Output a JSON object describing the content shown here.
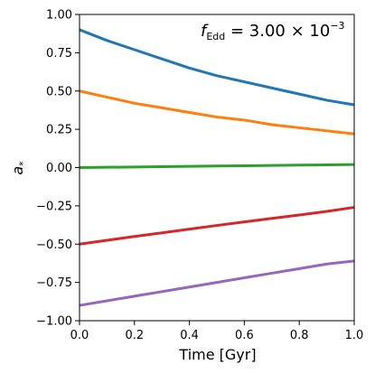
{
  "chart_data": {
    "type": "line",
    "xlabel": "Time [Gyr]",
    "ylabel": "a",
    "ylabel_subscript": "*",
    "xlim": [
      0.0,
      1.0
    ],
    "ylim": [
      -1.0,
      1.0
    ],
    "xticks": [
      "0.0",
      "0.2",
      "0.4",
      "0.6",
      "0.8",
      "1.0"
    ],
    "yticks": [
      "−1.00",
      "−0.75",
      "−0.50",
      "−0.25",
      "0.00",
      "0.25",
      "0.50",
      "0.75",
      "1.00"
    ],
    "grid": false,
    "annotation": {
      "italic": "f",
      "subscript": "Edd",
      "text": " = 3.00 × 10",
      "superscript": "−3",
      "position": "top-right"
    },
    "x": [
      0.0,
      0.1,
      0.2,
      0.3,
      0.4,
      0.5,
      0.6,
      0.7,
      0.8,
      0.9,
      1.0
    ],
    "series": [
      {
        "color": "#1f77b4",
        "values": [
          0.9,
          0.83,
          0.77,
          0.71,
          0.65,
          0.6,
          0.56,
          0.52,
          0.48,
          0.44,
          0.41
        ]
      },
      {
        "color": "#ff7f0e",
        "values": [
          0.5,
          0.46,
          0.42,
          0.39,
          0.36,
          0.33,
          0.31,
          0.28,
          0.26,
          0.24,
          0.22
        ]
      },
      {
        "color": "#2ca02c",
        "values": [
          0.0,
          0.002,
          0.004,
          0.006,
          0.008,
          0.01,
          0.012,
          0.014,
          0.016,
          0.018,
          0.02
        ]
      },
      {
        "color": "#d62728",
        "values": [
          -0.5,
          -0.475,
          -0.45,
          -0.426,
          -0.402,
          -0.378,
          -0.355,
          -0.332,
          -0.31,
          -0.286,
          -0.26
        ]
      },
      {
        "color": "#9467bd",
        "values": [
          -0.9,
          -0.87,
          -0.84,
          -0.81,
          -0.78,
          -0.75,
          -0.72,
          -0.69,
          -0.66,
          -0.63,
          -0.61
        ]
      }
    ]
  }
}
